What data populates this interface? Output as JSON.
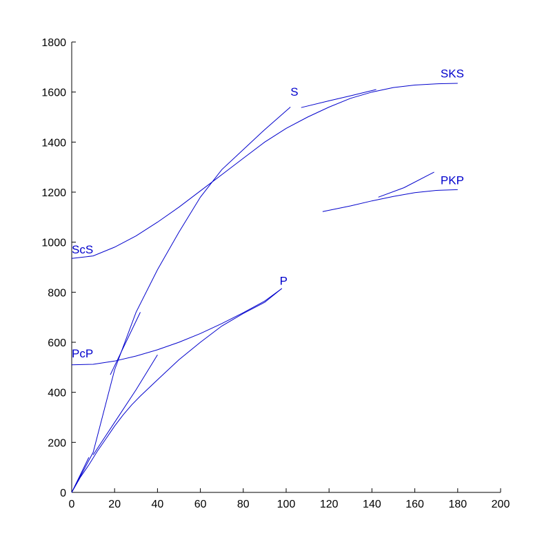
{
  "chart_data": {
    "type": "line",
    "title": "",
    "xlabel": "",
    "ylabel": "",
    "xlim": [
      0,
      200
    ],
    "ylim": [
      0,
      1800
    ],
    "xticks": [
      0,
      20,
      40,
      60,
      80,
      100,
      120,
      140,
      160,
      180,
      200
    ],
    "yticks": [
      0,
      200,
      400,
      600,
      800,
      1000,
      1200,
      1400,
      1600,
      1800
    ],
    "grid": false,
    "colors": {
      "series": "#0000cc",
      "axes": "#000000"
    },
    "labels": [
      {
        "text": "S",
        "x": 102,
        "y": 1585
      },
      {
        "text": "SKS",
        "x": 172,
        "y": 1658
      },
      {
        "text": "PKP",
        "x": 172,
        "y": 1232
      },
      {
        "text": "ScS",
        "x": 0,
        "y": 955
      },
      {
        "text": "P",
        "x": 97,
        "y": 830
      },
      {
        "text": "PcP",
        "x": 0,
        "y": 540
      }
    ],
    "series": [
      {
        "points": [
          [
            0,
            0
          ],
          [
            10,
            160
          ],
          [
            20,
            490
          ],
          [
            30,
            720
          ],
          [
            40,
            890
          ],
          [
            50,
            1040
          ],
          [
            60,
            1180
          ],
          [
            70,
            1290
          ],
          [
            80,
            1370
          ],
          [
            90,
            1450
          ],
          [
            98,
            1510
          ],
          [
            102,
            1540
          ]
        ]
      },
      {
        "points": [
          [
            18,
            470
          ],
          [
            32,
            720
          ]
        ]
      },
      {
        "points": [
          [
            0,
            0
          ],
          [
            4,
            60
          ],
          [
            8,
            110
          ],
          [
            12,
            165
          ],
          [
            16,
            215
          ],
          [
            20,
            265
          ],
          [
            24,
            310
          ],
          [
            28,
            350
          ],
          [
            32,
            385
          ],
          [
            40,
            450
          ],
          [
            50,
            530
          ],
          [
            60,
            600
          ],
          [
            70,
            665
          ],
          [
            80,
            715
          ],
          [
            90,
            760
          ],
          [
            98,
            815
          ]
        ]
      },
      {
        "points": [
          [
            10,
            150
          ],
          [
            20,
            280
          ],
          [
            30,
            410
          ],
          [
            40,
            550
          ]
        ]
      },
      {
        "points": [
          [
            0,
            0
          ],
          [
            8,
            140
          ]
        ]
      },
      {
        "points": [
          [
            0,
            935
          ],
          [
            10,
            945
          ],
          [
            20,
            980
          ],
          [
            30,
            1025
          ],
          [
            40,
            1080
          ],
          [
            50,
            1140
          ],
          [
            60,
            1205
          ],
          [
            70,
            1270
          ],
          [
            80,
            1335
          ],
          [
            90,
            1400
          ],
          [
            100,
            1455
          ],
          [
            110,
            1500
          ],
          [
            120,
            1540
          ],
          [
            130,
            1575
          ],
          [
            140,
            1600
          ],
          [
            150,
            1618
          ],
          [
            160,
            1628
          ],
          [
            170,
            1633
          ],
          [
            180,
            1635
          ]
        ]
      },
      {
        "points": [
          [
            107,
            1538
          ],
          [
            120,
            1565
          ],
          [
            130,
            1585
          ],
          [
            142,
            1610
          ]
        ]
      },
      {
        "points": [
          [
            0,
            510
          ],
          [
            10,
            512
          ],
          [
            20,
            525
          ],
          [
            30,
            545
          ],
          [
            40,
            570
          ],
          [
            50,
            600
          ],
          [
            60,
            635
          ],
          [
            70,
            675
          ],
          [
            80,
            718
          ],
          [
            90,
            765
          ],
          [
            98,
            815
          ]
        ]
      },
      {
        "points": [
          [
            117,
            1122
          ],
          [
            130,
            1145
          ],
          [
            140,
            1165
          ],
          [
            150,
            1183
          ],
          [
            160,
            1198
          ],
          [
            170,
            1207
          ],
          [
            180,
            1210
          ]
        ]
      },
      {
        "points": [
          [
            143,
            1180
          ],
          [
            155,
            1218
          ],
          [
            169,
            1280
          ]
        ]
      }
    ]
  }
}
